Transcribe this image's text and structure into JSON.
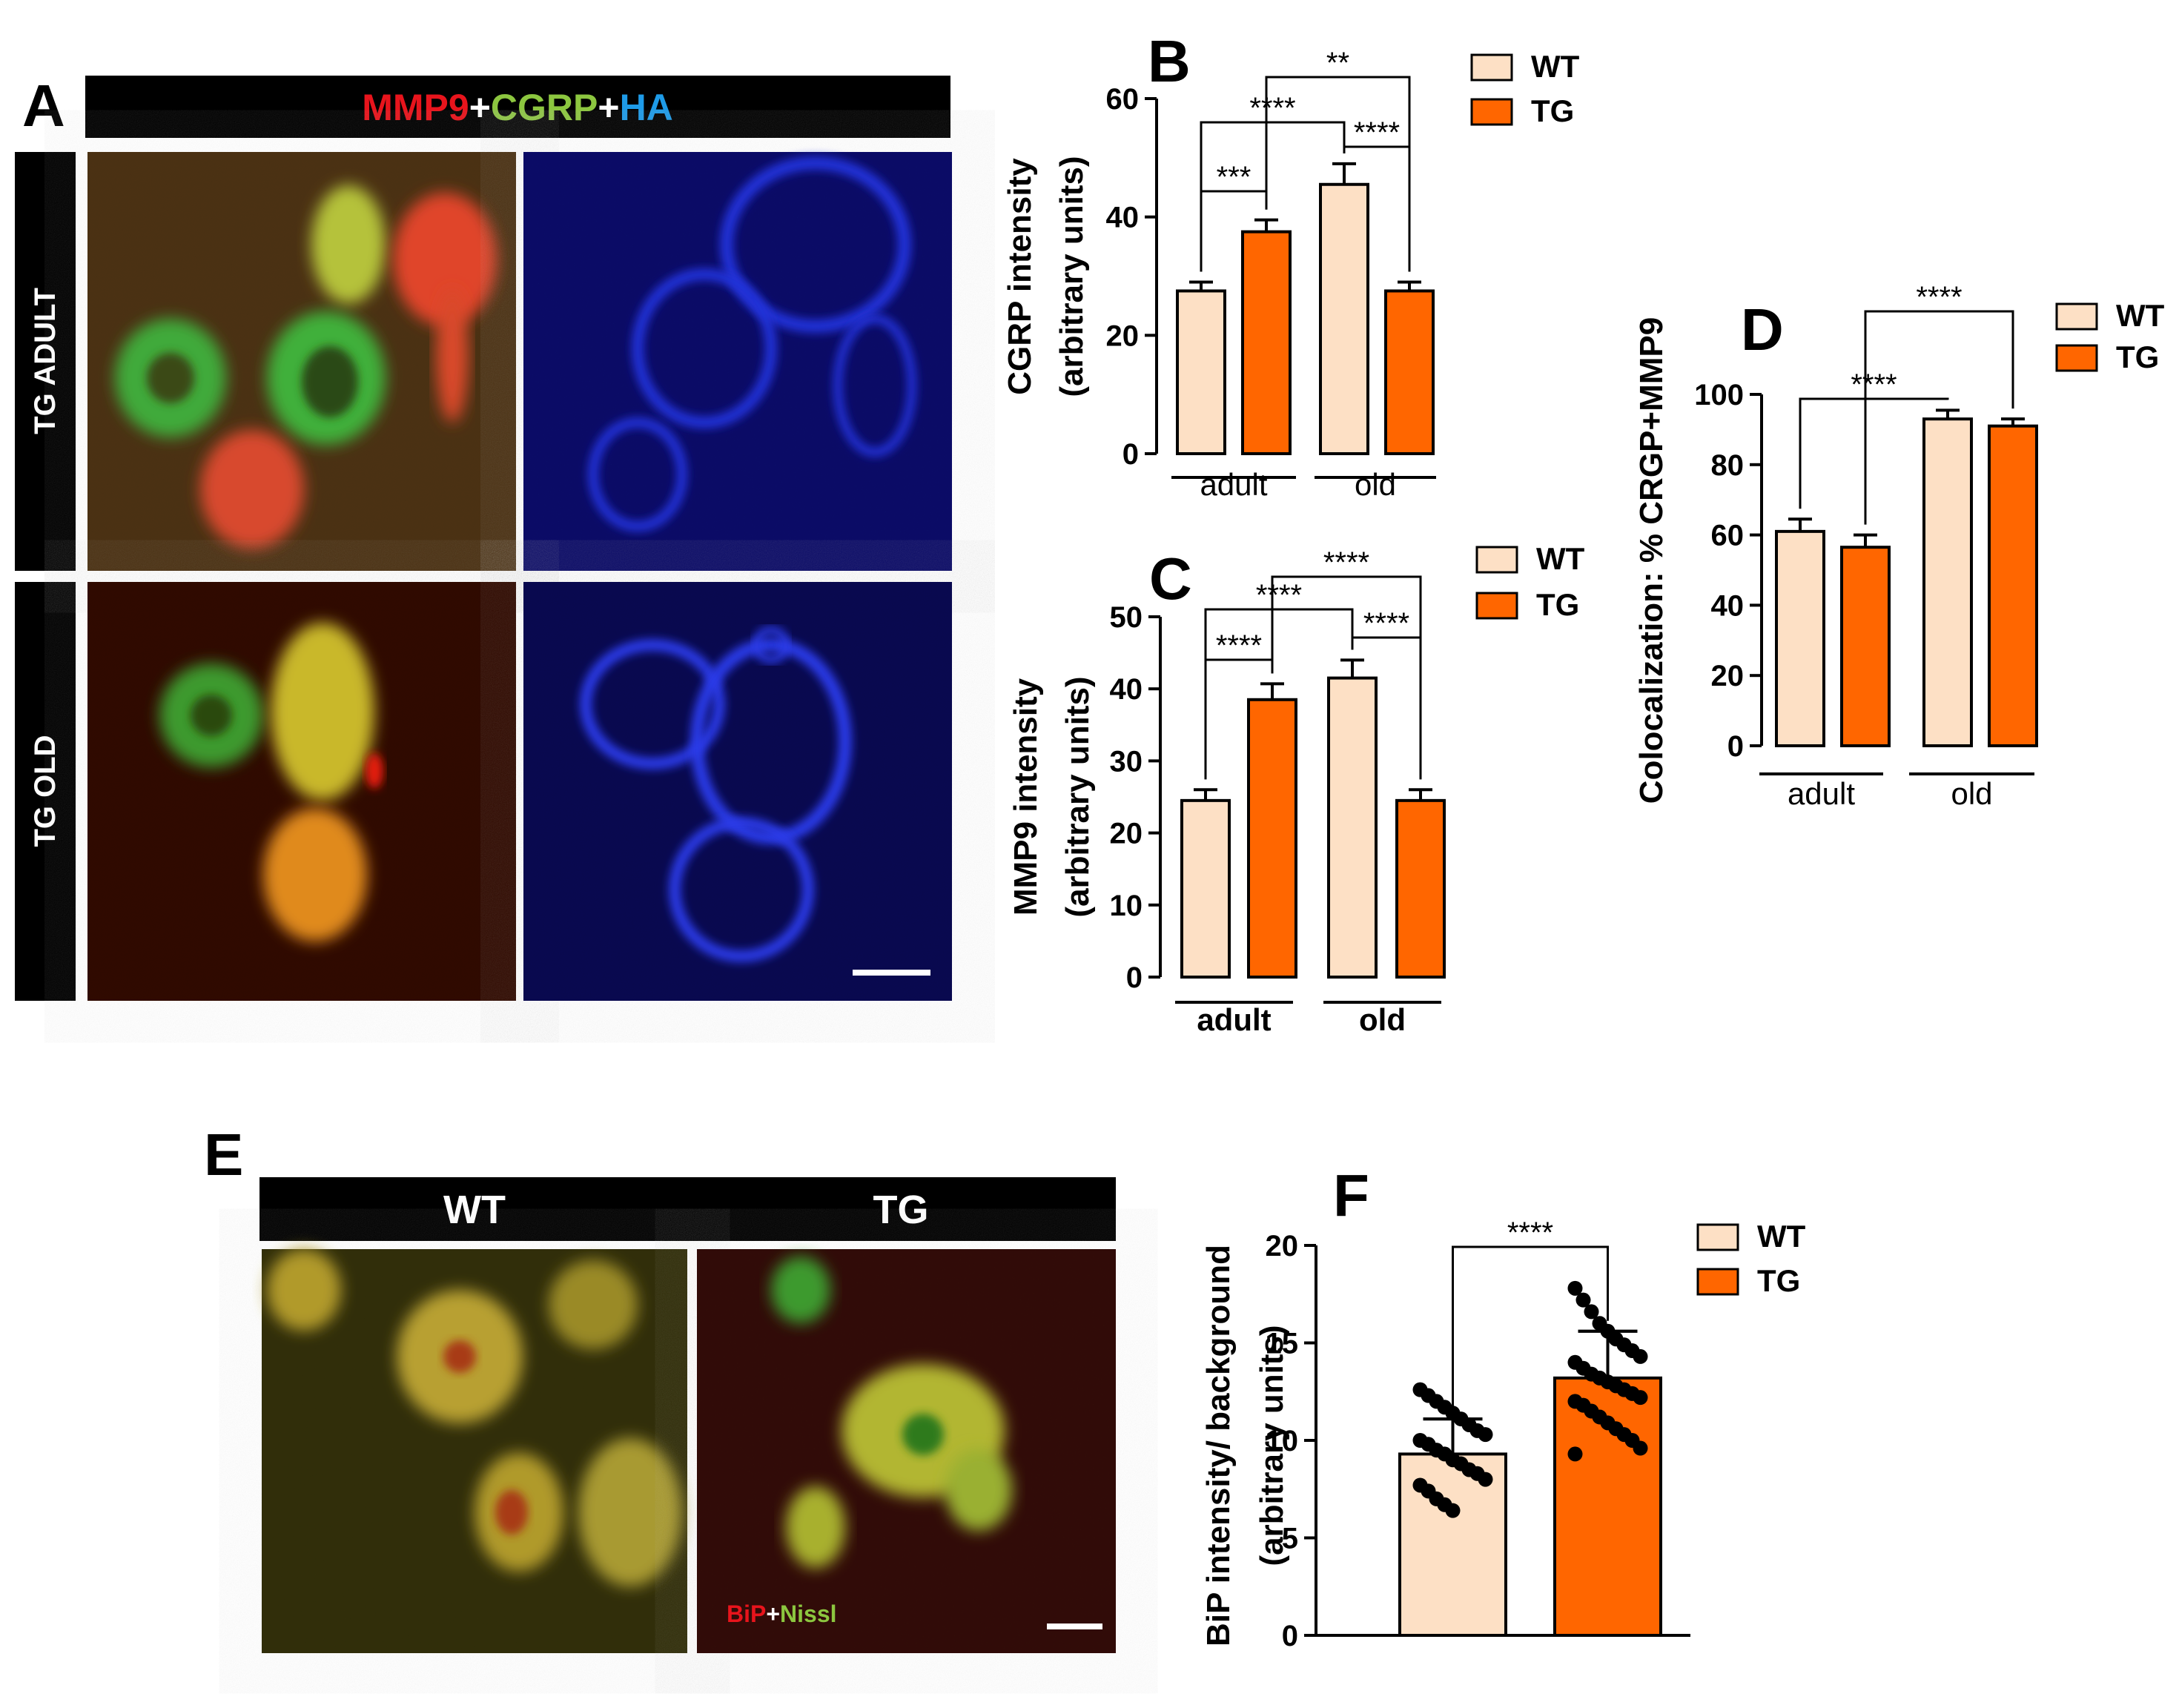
{
  "panels": {
    "A": {
      "letter": "A",
      "header": {
        "mmp9": "MMP9",
        "plus1": "+",
        "cgrp": "CGRP",
        "plus2": "+",
        "ha": "HA"
      },
      "row_labels": [
        "TG ADULT",
        "TG OLD"
      ]
    },
    "E": {
      "letter": "E",
      "col_labels": [
        "WT",
        "TG"
      ],
      "stain": {
        "bip": "BiP",
        "plus": "+",
        "nissl": "Nissl"
      }
    }
  },
  "colors": {
    "wt": "#FDE0C5",
    "tg": "#FF6600",
    "mmp9_text": "#E8141C",
    "cgrp_text": "#8CC63F",
    "ha_text": "#1E9BE8",
    "bar_stroke": "#000000"
  },
  "chart_data": [
    {
      "id": "B",
      "letter": "B",
      "type": "bar",
      "ylabel": [
        "CGRP intensity",
        "(arbitrary units)"
      ],
      "ylim": [
        0,
        60
      ],
      "yticks": [
        "0",
        "20",
        "40",
        "60"
      ],
      "groups": [
        "adult",
        "old"
      ],
      "legend": [
        "WT",
        "TG"
      ],
      "values": [
        27.5,
        37.5,
        45.5,
        27.5
      ],
      "errors": [
        1.5,
        2,
        3.5,
        1.5
      ],
      "significance": [
        {
          "from": 0,
          "to": 1,
          "label": "***"
        },
        {
          "from": 0,
          "to": 2,
          "label": "****"
        },
        {
          "from": 2,
          "to": 3,
          "label": "****"
        },
        {
          "from": 1,
          "to": 3,
          "label": "**"
        }
      ]
    },
    {
      "id": "C",
      "letter": "C",
      "type": "bar",
      "ylabel": [
        "MMP9 intensity",
        "(arbitrary units)"
      ],
      "ylim": [
        0,
        50
      ],
      "yticks": [
        "0",
        "10",
        "20",
        "30",
        "40",
        "50"
      ],
      "groups": [
        "adult",
        "old"
      ],
      "legend": [
        "WT",
        "TG"
      ],
      "values": [
        24.5,
        38.5,
        41.5,
        24.5
      ],
      "errors": [
        1.5,
        2.2,
        2.5,
        1.5
      ],
      "significance": [
        {
          "from": 0,
          "to": 1,
          "label": "****"
        },
        {
          "from": 0,
          "to": 2,
          "label": "****"
        },
        {
          "from": 2,
          "to": 3,
          "label": "****"
        },
        {
          "from": 1,
          "to": 3,
          "label": "****"
        }
      ]
    },
    {
      "id": "D",
      "letter": "D",
      "type": "bar",
      "ylabel": [
        "Colocalization: % CRGP+MMP9"
      ],
      "ylim": [
        0,
        100
      ],
      "yticks": [
        "0",
        "20",
        "40",
        "60",
        "80",
        "100"
      ],
      "groups": [
        "adult",
        "old"
      ],
      "legend": [
        "WT",
        "TG"
      ],
      "values": [
        61,
        56.5,
        93,
        91
      ],
      "errors": [
        3.5,
        3.5,
        2.5,
        2
      ],
      "significance": [
        {
          "from": 0,
          "to": 2,
          "label": "****"
        },
        {
          "from": 1,
          "to": 3,
          "label": "****"
        }
      ]
    },
    {
      "id": "F",
      "letter": "F",
      "type": "bar-scatter",
      "ylabel": [
        "BiP intensity/ background",
        "(arbitrary units)"
      ],
      "ylim": [
        0,
        20
      ],
      "yticks": [
        "0",
        "5",
        "10",
        "15",
        "20"
      ],
      "legend": [
        "WT",
        "TG"
      ],
      "values": [
        9.3,
        13.2
      ],
      "errors": [
        1.8,
        2.4
      ],
      "points": [
        [
          12.6,
          12.3,
          12.0,
          11.7,
          11.4,
          11.1,
          10.8,
          10.5,
          10.3,
          10.0,
          9.8,
          9.5,
          9.3,
          9.0,
          8.8,
          8.5,
          8.3,
          8.0,
          7.7,
          7.4,
          7.0,
          6.7,
          6.4
        ],
        [
          17.8,
          17.2,
          16.6,
          16.0,
          15.6,
          15.2,
          14.9,
          14.6,
          14.3,
          14.0,
          13.7,
          13.4,
          13.2,
          13.0,
          12.8,
          12.6,
          12.4,
          12.2,
          12.0,
          11.8,
          11.5,
          11.2,
          10.9,
          10.6,
          10.3,
          10.0,
          9.6,
          9.3
        ]
      ],
      "significance": [
        {
          "from": 0,
          "to": 1,
          "label": "****"
        }
      ]
    }
  ]
}
